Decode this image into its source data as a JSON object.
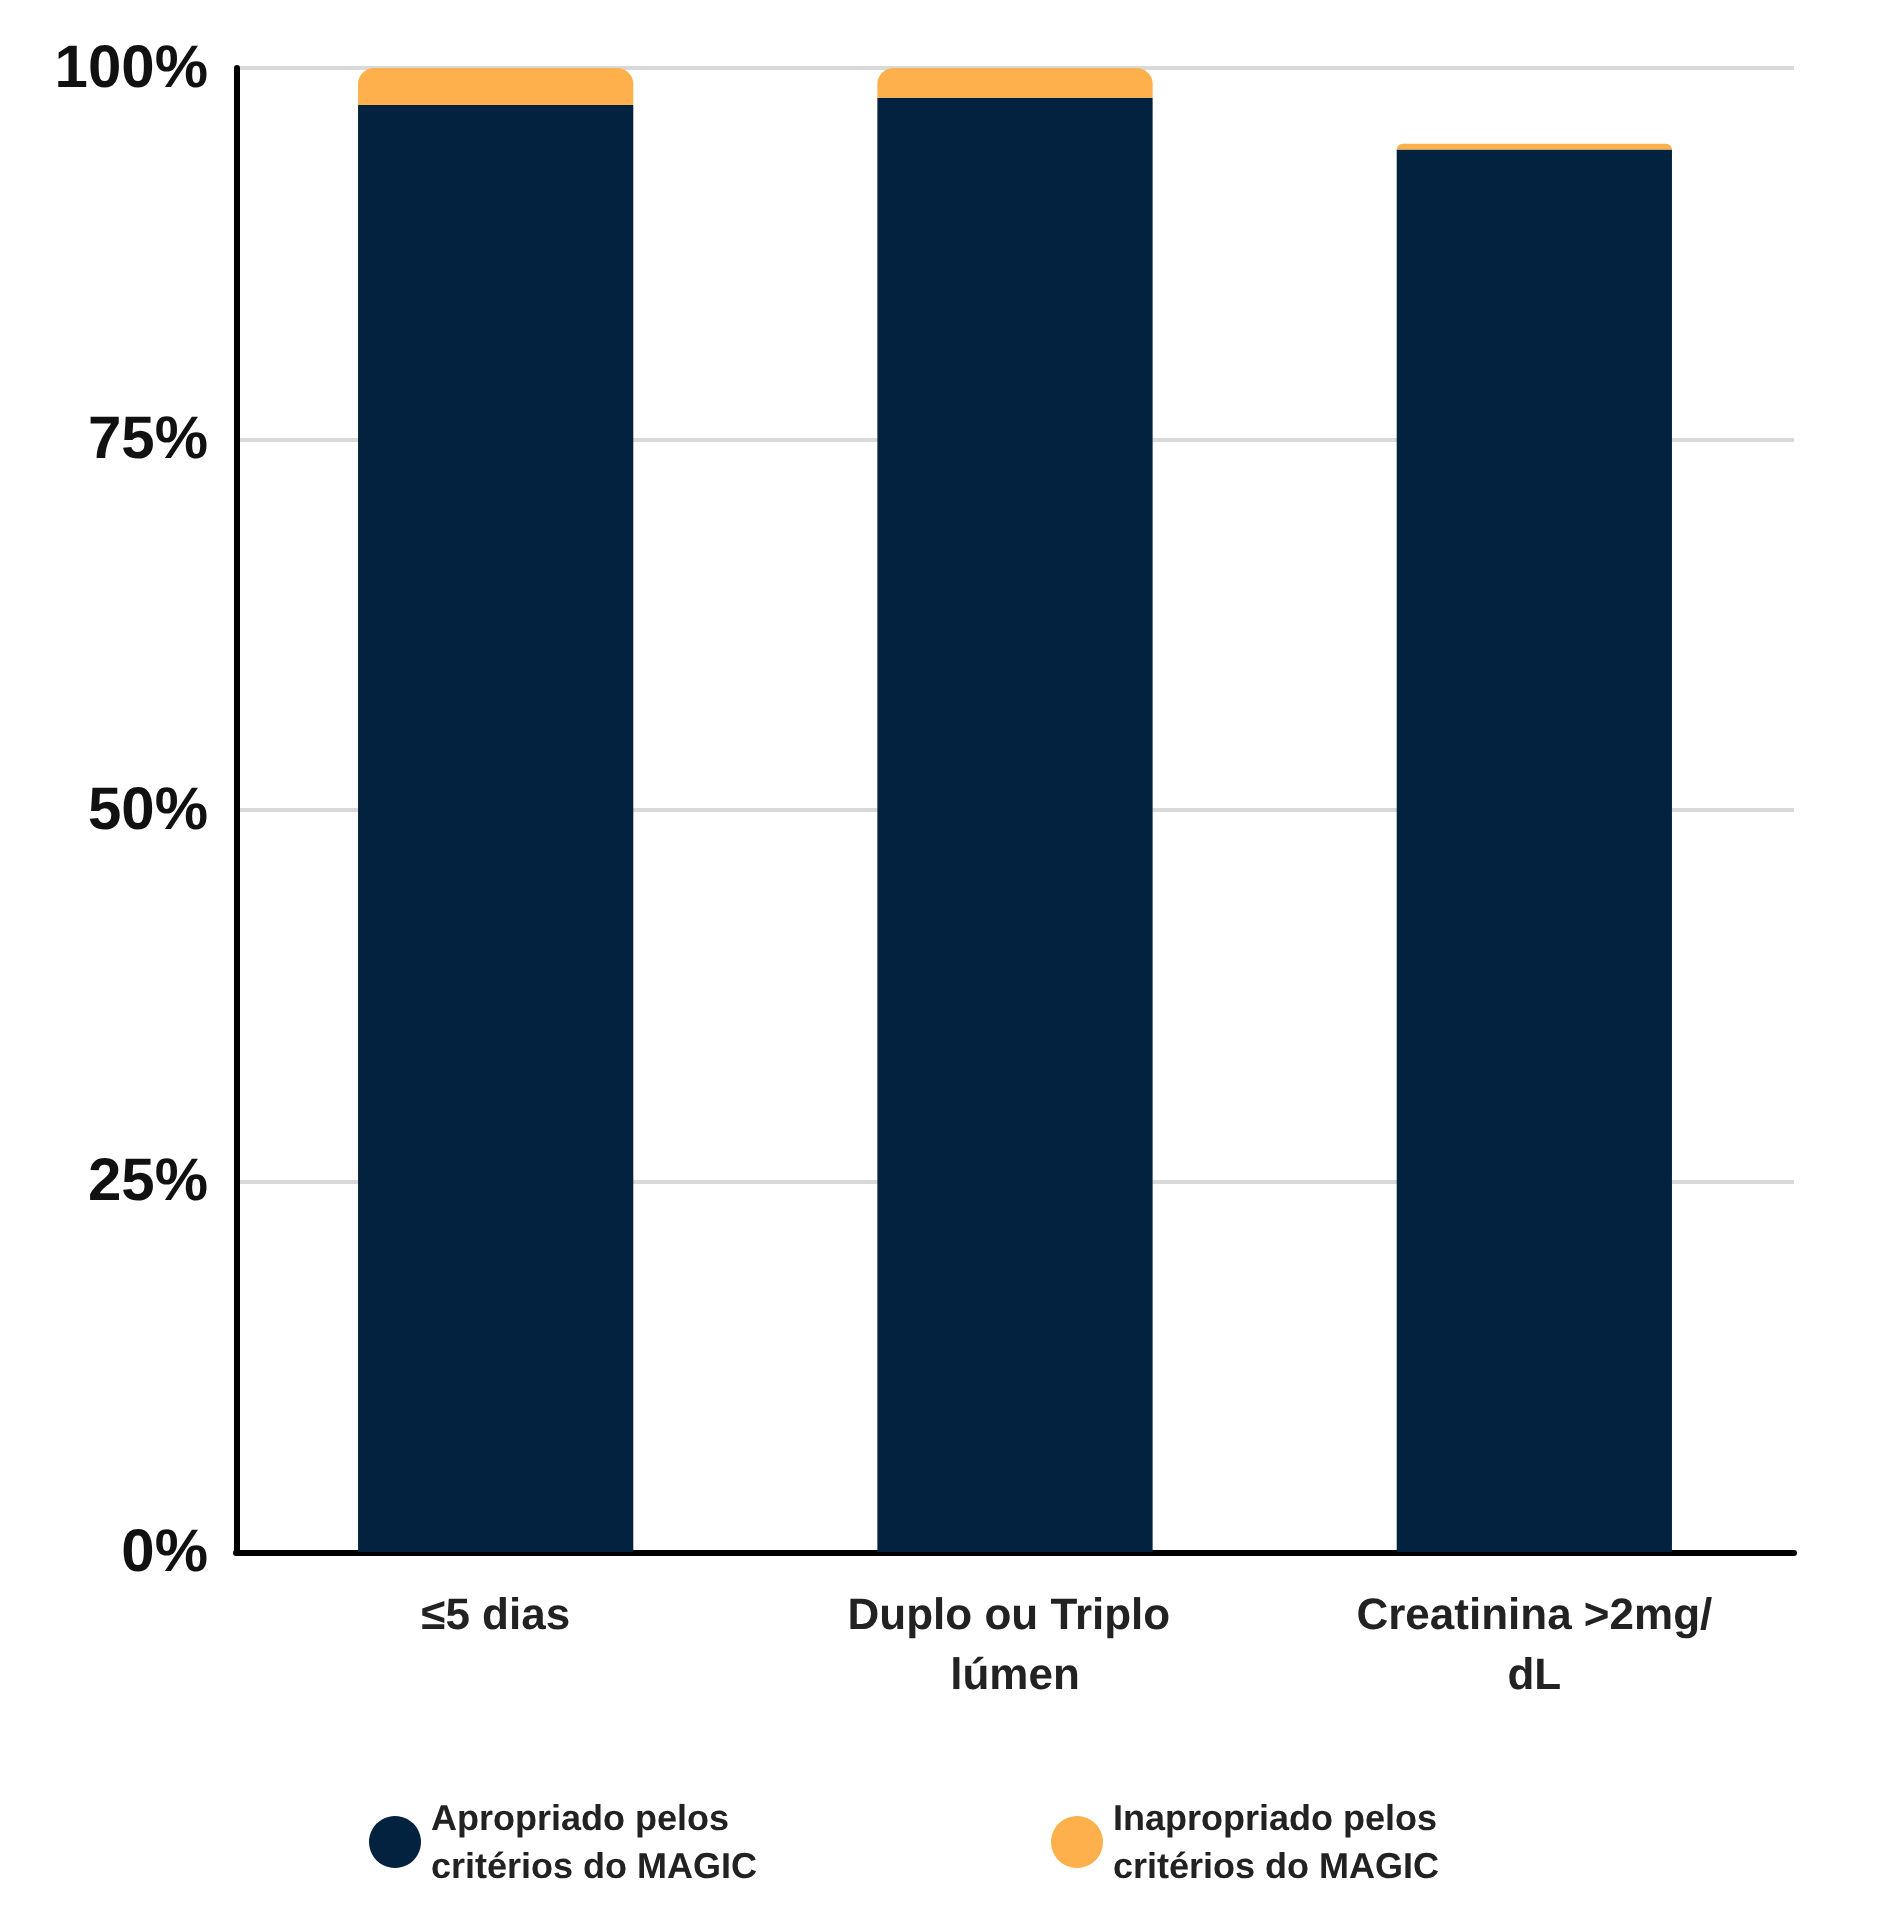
{
  "chart_data": {
    "type": "bar",
    "stacked": true,
    "categories": [
      "≤5 dias",
      "Duplo ou Triplo lúmen",
      "Creatinina >2mg/dL"
    ],
    "series": [
      {
        "name": "Apropriado pelos critérios do MAGIC",
        "color": "#02223f",
        "values": [
          97.5,
          98,
          94.5
        ]
      },
      {
        "name": "Inapropriado pelos critérios do MAGIC",
        "color": "#fdb04b",
        "values": [
          2.5,
          2,
          0.4
        ]
      }
    ],
    "ylim": [
      0,
      100
    ],
    "yticks": [
      {
        "value": 0,
        "label": "0%"
      },
      {
        "value": 25,
        "label": "25%"
      },
      {
        "value": 50,
        "label": "50%"
      },
      {
        "value": 75,
        "label": "75%"
      },
      {
        "value": 100,
        "label": "100%"
      }
    ],
    "grid": "y",
    "legend": "bottom"
  }
}
